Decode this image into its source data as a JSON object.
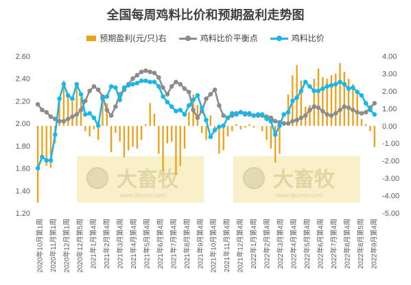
{
  "chart_data": {
    "type": "bar+line",
    "title": "全国每周鸡料比价和预期盈利走势图",
    "legend": [
      {
        "name": "预期盈利(元/只)右",
        "kind": "bar",
        "color": "#F0A11C"
      },
      {
        "name": "鸡料比价平衡点",
        "kind": "line",
        "color": "#8C8C8C"
      },
      {
        "name": "鸡料比价",
        "kind": "line",
        "color": "#1BB6E8"
      }
    ],
    "watermark": {
      "brand": "大畜牧",
      "site": "www.dxumu.com"
    },
    "y_left": {
      "min": 1.2,
      "max": 2.6,
      "ticks": [
        "1.20",
        "1.40",
        "1.60",
        "1.80",
        "2.00",
        "2.20",
        "2.40",
        "2.60"
      ]
    },
    "y_right": {
      "min": -5.0,
      "max": 4.0,
      "ticks": [
        "-5.00",
        "-4.00",
        "-3.00",
        "-2.00",
        "-1.00",
        "0.00",
        "1.00",
        "2.00",
        "3.00",
        "4.00"
      ]
    },
    "x_labels": [
      "2020年10月第1周",
      "2020年11月第1周",
      "2020年12月第1周",
      "2020年12月第5周",
      "2021年1月第4周",
      "2021年2月第4周",
      "2021年3月第4周",
      "2021年4月第4周",
      "2021年5月第4周",
      "2021年6月第4周",
      "2021年7月第4周",
      "2021年8月第4周",
      "2021年9月第4周",
      "2021年10月第4周",
      "2021年11月第4周",
      "2021年12月第4周",
      "2022年1月第4周",
      "2022年2月第4周",
      "2022年3月第4周",
      "2022年4月第4周",
      "2022年5月第4周",
      "2022年6月第4周",
      "2022年7月第4周",
      "2022年8月第4周",
      "2022年8月第5周",
      "2022年9月第4周"
    ],
    "series": [
      {
        "name": "预期盈利(元/只)右",
        "axis": "right",
        "values": [
          -4.4,
          -1.9,
          -2.3,
          -2.4,
          -1.0,
          1.4,
          2.6,
          1.7,
          1.4,
          2.5,
          1.6,
          -0.3,
          -0.6,
          -0.2,
          -0.8,
          1.4,
          1.3,
          -1.5,
          -0.4,
          -0.9,
          -1.8,
          -1.4,
          -1.2,
          -1.3,
          -0.8,
          0.1,
          1.3,
          0.7,
          -1.6,
          -2.6,
          -1.0,
          -0.9,
          -2.8,
          -2.3,
          -1.3,
          0.8,
          1.8,
          1.2,
          -0.4,
          -0.8,
          0.6,
          -0.2,
          -1.6,
          -1.4,
          -0.6,
          -0.3,
          0.1,
          -0.2,
          -0.1,
          0.1,
          -0.1,
          0.0,
          -0.3,
          -0.8,
          -1.3,
          -2.1,
          -1.6,
          0.2,
          1.8,
          2.9,
          3.5,
          2.6,
          1.1,
          1.2,
          2.7,
          3.3,
          2.8,
          2.7,
          2.9,
          3.0,
          3.6,
          3.1,
          2.7,
          2.4,
          1.8,
          0.4,
          0.1,
          -0.3,
          -1.2
        ]
      },
      {
        "name": "鸡料比价平衡点",
        "axis": "left",
        "values": [
          2.17,
          2.12,
          2.1,
          2.06,
          2.04,
          2.02,
          2.02,
          2.04,
          2.06,
          2.08,
          2.12,
          2.2,
          2.29,
          2.33,
          2.3,
          2.24,
          2.12,
          2.07,
          2.15,
          2.26,
          2.3,
          2.35,
          2.4,
          2.43,
          2.46,
          2.47,
          2.46,
          2.45,
          2.41,
          2.32,
          2.26,
          2.33,
          2.37,
          2.35,
          2.31,
          2.28,
          2.12,
          2.05,
          2.11,
          2.22,
          2.26,
          2.3,
          2.16,
          2.07,
          2.05,
          2.07,
          2.09,
          2.1,
          2.09,
          2.08,
          2.07,
          2.07,
          2.07,
          2.06,
          2.05,
          2.02,
          2.01,
          2.0,
          2.0,
          2.02,
          2.03,
          2.05,
          2.07,
          2.12,
          2.15,
          2.14,
          2.11,
          2.08,
          2.07,
          2.09,
          2.12,
          2.15,
          2.14,
          2.12,
          2.1,
          2.09,
          2.1,
          2.14,
          2.18
        ]
      },
      {
        "name": "鸡料比价",
        "axis": "left",
        "values": [
          1.6,
          1.7,
          1.67,
          1.67,
          1.9,
          2.22,
          2.35,
          2.25,
          2.22,
          2.35,
          2.26,
          2.08,
          2.09,
          2.05,
          1.98,
          2.22,
          2.24,
          2.33,
          2.32,
          2.21,
          2.32,
          2.34,
          2.35,
          2.36,
          2.38,
          2.38,
          2.37,
          2.37,
          2.33,
          2.24,
          2.19,
          2.15,
          2.11,
          2.12,
          2.08,
          2.16,
          2.21,
          2.25,
          2.14,
          2.03,
          1.88,
          1.94,
          1.97,
          1.98,
          2.05,
          2.09,
          2.08,
          2.1,
          2.08,
          2.09,
          2.07,
          2.08,
          2.08,
          2.04,
          2.02,
          1.9,
          1.98,
          2.08,
          2.1,
          2.2,
          2.23,
          2.29,
          2.37,
          2.33,
          2.29,
          2.29,
          2.31,
          2.33,
          2.34,
          2.35,
          2.37,
          2.35,
          2.31,
          2.32,
          2.28,
          2.25,
          2.18,
          2.12,
          2.08
        ]
      }
    ]
  }
}
